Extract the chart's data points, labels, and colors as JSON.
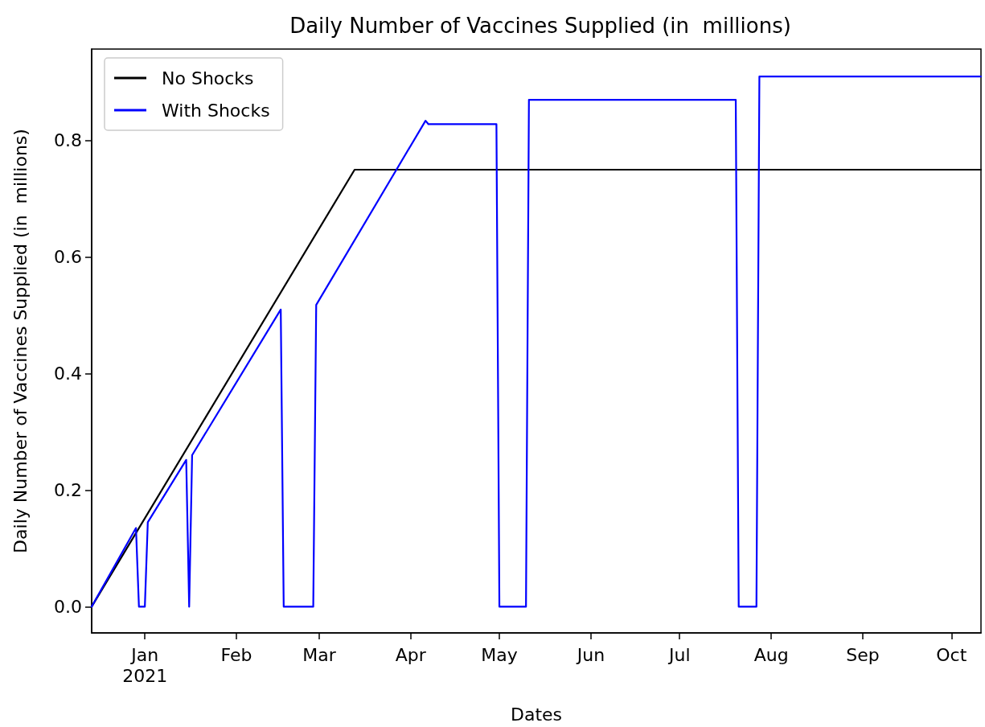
{
  "chart_data": {
    "type": "line",
    "title": "Daily Number of Vaccines Supplied (in  millions)",
    "xlabel": "Dates",
    "ylabel": "Daily Number of Vaccines Supplied (in  millions)",
    "xlim": [
      "2020-12-14",
      "2021-10-11"
    ],
    "xticks": [
      {
        "value": "2021-01-01",
        "label": "Jan\n2021"
      },
      {
        "value": "2021-02-01",
        "label": "Feb"
      },
      {
        "value": "2021-03-01",
        "label": "Mar"
      },
      {
        "value": "2021-04-01",
        "label": "Apr"
      },
      {
        "value": "2021-05-01",
        "label": "May"
      },
      {
        "value": "2021-06-01",
        "label": "Jun"
      },
      {
        "value": "2021-07-01",
        "label": "Jul"
      },
      {
        "value": "2021-08-01",
        "label": "Aug"
      },
      {
        "value": "2021-09-01",
        "label": "Sep"
      },
      {
        "value": "2021-10-01",
        "label": "Oct"
      }
    ],
    "ylim": [
      -0.045,
      0.957
    ],
    "yticks": [
      {
        "value": 0,
        "label": "0.0"
      },
      0.2,
      0.4,
      0.6,
      0.8
    ],
    "grid": false,
    "legend": "top left",
    "marker": "none",
    "line_style": "solid",
    "series": [
      {
        "name": "No Shocks",
        "color": "#000000",
        "x": [
          "2020-12-14",
          "2021-03-13",
          "2021-10-11"
        ],
        "values": [
          0,
          0.75,
          0.75
        ]
      },
      {
        "name": "With Shocks",
        "color": "#0000ff",
        "x": [
          "2020-12-14",
          "2020-12-29",
          "2020-12-30",
          "2021-01-01",
          "2021-01-02",
          "2021-01-15",
          "2021-01-16",
          "2021-01-17",
          "2021-02-16",
          "2021-02-17",
          "2021-02-27",
          "2021-02-28",
          "2021-04-06",
          "2021-04-07",
          "2021-04-30",
          "2021-05-01",
          "2021-05-10",
          "2021-05-11",
          "2021-07-20",
          "2021-07-21",
          "2021-07-27",
          "2021-07-28",
          "2021-10-11"
        ],
        "values": [
          0,
          0.135,
          0,
          0,
          0.145,
          0.252,
          0,
          0.26,
          0.51,
          0,
          0,
          0.518,
          0.834,
          0.828,
          0.828,
          0,
          0,
          0.87,
          0.87,
          0,
          0,
          0.91,
          0.91
        ]
      }
    ]
  }
}
